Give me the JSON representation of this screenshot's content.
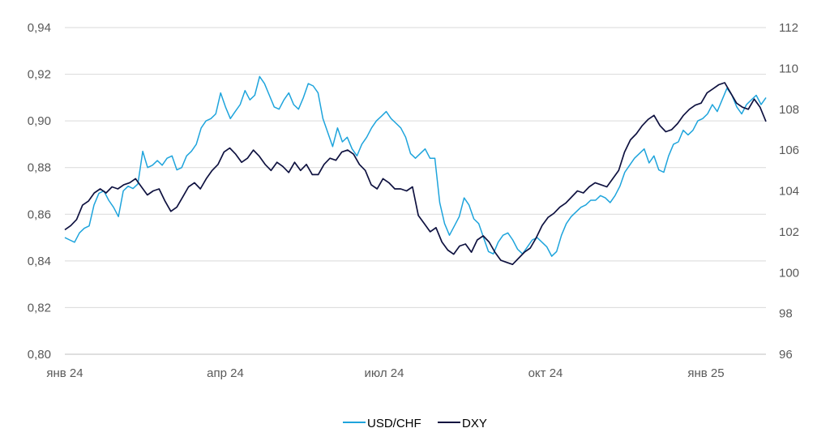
{
  "chart_data": {
    "type": "line",
    "title": "",
    "xlabel": "",
    "ylabel": "",
    "x_ticks": [
      "янв 24",
      "апр 24",
      "июл 24",
      "окт 24",
      "янв 25"
    ],
    "left_axis": {
      "ticks": [
        "0,80",
        "0,82",
        "0,84",
        "0,86",
        "0,88",
        "0,90",
        "0,92",
        "0,94"
      ],
      "ylim": [
        0.8,
        0.94
      ]
    },
    "right_axis": {
      "ticks": [
        "96",
        "98",
        "100",
        "102",
        "104",
        "106",
        "108",
        "110",
        "112"
      ],
      "ylim": [
        96,
        112
      ]
    },
    "grid": "horizontal",
    "legend_position": "bottom-center",
    "series": [
      {
        "name": "USD/CHF",
        "axis": "left",
        "color": "#1ea4dc",
        "values": [
          0.85,
          0.849,
          0.848,
          0.852,
          0.854,
          0.855,
          0.864,
          0.869,
          0.87,
          0.866,
          0.863,
          0.859,
          0.87,
          0.872,
          0.871,
          0.873,
          0.887,
          0.88,
          0.881,
          0.883,
          0.881,
          0.884,
          0.885,
          0.879,
          0.88,
          0.885,
          0.887,
          0.89,
          0.897,
          0.9,
          0.901,
          0.903,
          0.912,
          0.906,
          0.901,
          0.904,
          0.907,
          0.913,
          0.909,
          0.911,
          0.919,
          0.916,
          0.911,
          0.906,
          0.905,
          0.909,
          0.912,
          0.907,
          0.905,
          0.91,
          0.916,
          0.915,
          0.912,
          0.901,
          0.895,
          0.889,
          0.897,
          0.891,
          0.893,
          0.888,
          0.885,
          0.89,
          0.893,
          0.897,
          0.9,
          0.902,
          0.904,
          0.901,
          0.899,
          0.897,
          0.893,
          0.886,
          0.884,
          0.886,
          0.888,
          0.884,
          0.884,
          0.865,
          0.856,
          0.851,
          0.855,
          0.859,
          0.867,
          0.864,
          0.858,
          0.856,
          0.85,
          0.844,
          0.843,
          0.848,
          0.851,
          0.852,
          0.849,
          0.845,
          0.843,
          0.846,
          0.849,
          0.85,
          0.848,
          0.846,
          0.842,
          0.844,
          0.851,
          0.856,
          0.859,
          0.861,
          0.863,
          0.864,
          0.866,
          0.866,
          0.868,
          0.867,
          0.865,
          0.868,
          0.872,
          0.878,
          0.881,
          0.884,
          0.886,
          0.888,
          0.882,
          0.885,
          0.879,
          0.878,
          0.885,
          0.89,
          0.891,
          0.896,
          0.894,
          0.896,
          0.9,
          0.901,
          0.903,
          0.907,
          0.904,
          0.909,
          0.914,
          0.911,
          0.906,
          0.903,
          0.907,
          0.909,
          0.911,
          0.907,
          0.91
        ]
      },
      {
        "name": "DXY",
        "axis": "right",
        "color": "#0f1240",
        "values": [
          102.1,
          102.3,
          102.6,
          103.3,
          103.5,
          103.9,
          104.1,
          103.9,
          104.2,
          104.1,
          104.3,
          104.4,
          104.6,
          104.2,
          103.8,
          104.0,
          104.1,
          103.5,
          103.0,
          103.2,
          103.7,
          104.2,
          104.4,
          104.1,
          104.6,
          105.0,
          105.3,
          105.9,
          106.1,
          105.8,
          105.4,
          105.6,
          106.0,
          105.7,
          105.3,
          105.0,
          105.4,
          105.2,
          104.9,
          105.4,
          105.0,
          105.3,
          104.8,
          104.8,
          105.3,
          105.6,
          105.5,
          105.9,
          106.0,
          105.8,
          105.3,
          105.0,
          104.3,
          104.1,
          104.6,
          104.4,
          104.1,
          104.1,
          104.0,
          104.2,
          102.8,
          102.4,
          102.0,
          102.2,
          101.5,
          101.1,
          100.9,
          101.3,
          101.4,
          101.0,
          101.6,
          101.8,
          101.5,
          101.0,
          100.6,
          100.5,
          100.4,
          100.7,
          101.0,
          101.2,
          101.7,
          102.3,
          102.7,
          102.9,
          103.2,
          103.4,
          103.7,
          104.0,
          103.9,
          104.2,
          104.4,
          104.3,
          104.2,
          104.6,
          105.0,
          105.9,
          106.5,
          106.8,
          107.2,
          107.5,
          107.7,
          107.2,
          106.9,
          107.0,
          107.3,
          107.7,
          108.0,
          108.2,
          108.3,
          108.8,
          109.0,
          109.2,
          109.3,
          108.8,
          108.3,
          108.1,
          108.0,
          108.5,
          108.1,
          107.4
        ]
      }
    ]
  }
}
